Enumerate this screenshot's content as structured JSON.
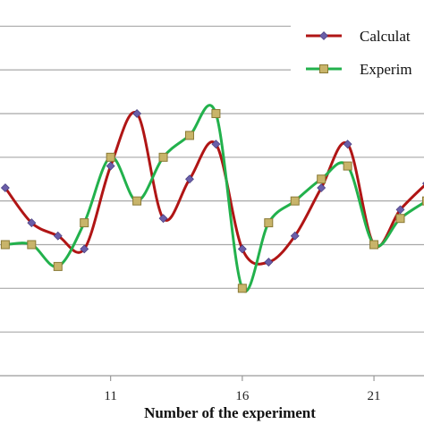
{
  "chart_data": {
    "type": "line",
    "title": "",
    "xlabel": "Number of the experiment",
    "ylabel": "",
    "x_ticks": [
      11,
      16,
      21
    ],
    "xlim": [
      6.8,
      22.9
    ],
    "ylim": [
      0,
      8.6
    ],
    "grid_lines_y": [
      1,
      2,
      3,
      4,
      5,
      6,
      7,
      8
    ],
    "grid": "horizontal",
    "legend_position": "top-right",
    "series": [
      {
        "name": "Calculat",
        "color": "#b01515",
        "marker": "diamond",
        "marker_color": "#6a5ea8",
        "x": [
          7,
          8,
          9,
          10,
          11,
          12,
          13,
          14,
          15,
          16,
          17,
          18,
          19,
          20,
          21,
          22,
          23
        ],
        "y": [
          4.3,
          3.5,
          3.2,
          2.9,
          4.8,
          6.0,
          3.6,
          4.5,
          5.3,
          2.9,
          2.6,
          3.2,
          4.3,
          5.3,
          3.0,
          3.8,
          4.4
        ]
      },
      {
        "name": "Experim",
        "color": "#22b14c",
        "marker": "square",
        "marker_color": "#c8b46a",
        "x": [
          7,
          8,
          9,
          10,
          11,
          12,
          13,
          14,
          15,
          16,
          17,
          18,
          19,
          20,
          21,
          22,
          23
        ],
        "y": [
          3.0,
          3.0,
          2.5,
          3.5,
          5.0,
          4.0,
          5.0,
          5.5,
          6.0,
          2.0,
          3.5,
          4.0,
          4.5,
          4.8,
          3.0,
          3.6,
          4.0
        ]
      }
    ]
  }
}
